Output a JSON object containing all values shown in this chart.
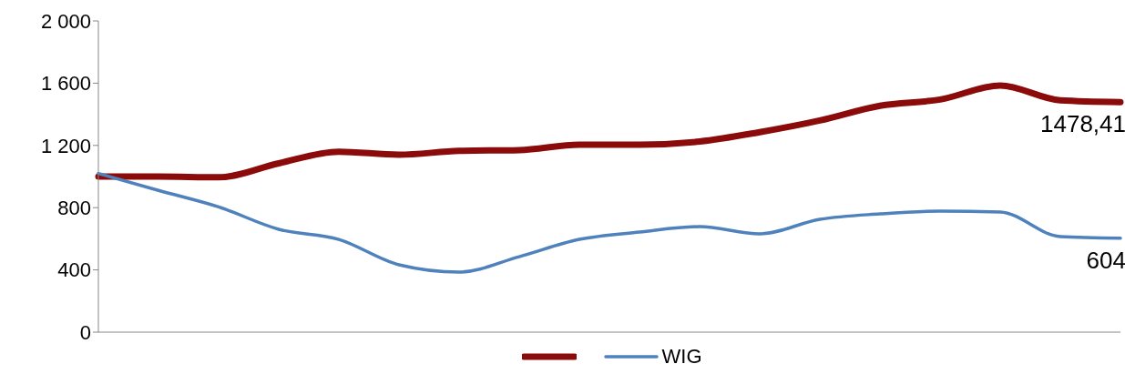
{
  "chart_data": {
    "type": "line",
    "categories": [
      null,
      null,
      null,
      null,
      null,
      null,
      null,
      null,
      null,
      null,
      null,
      null,
      null,
      null,
      null,
      null,
      null,
      null
    ],
    "series": [
      {
        "color": "#8b0a0a",
        "values": [
          1000,
          1000,
          995,
          1085,
          1160,
          1140,
          1165,
          1170,
          1205,
          1205,
          1225,
          1285,
          1360,
          1455,
          1495,
          1585,
          1490,
          1478.41
        ]
      },
      {
        "name": "WIG",
        "color": "#4f81bd",
        "values": [
          1020,
          911,
          805,
          661,
          596,
          433,
          386,
          485,
          596,
          643,
          678,
          632,
          725,
          760,
          778,
          772,
          614,
          604
        ]
      }
    ],
    "ylim": [
      0,
      2000
    ],
    "yticks": [
      0,
      400,
      800,
      {
        "value": 1200,
        "label": "1 200"
      },
      {
        "value": 1600,
        "label": "1 600"
      },
      {
        "value": 2000,
        "label": "2 000"
      }
    ],
    "grid": false,
    "legend": "bottom",
    "marker": "none",
    "line_style": "solid",
    "annotations": [
      {
        "text": "1478,41",
        "y": 1478.41
      },
      {
        "text": "604",
        "y": 604
      }
    ]
  }
}
